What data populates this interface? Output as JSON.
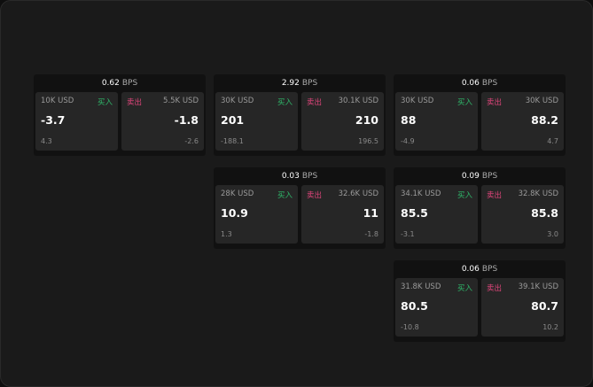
{
  "colors": {
    "buy": "#2fb86a",
    "sell": "#e0457b"
  },
  "labels": {
    "buy": "买入",
    "sell": "卖出",
    "unit": "BPS"
  },
  "cards": [
    {
      "spread": "0.62",
      "bid": {
        "size": "10K USD",
        "price": "-3.7",
        "change": "4.3"
      },
      "ask": {
        "size": "5.5K USD",
        "price": "-1.8",
        "change": "-2.6"
      }
    },
    {
      "spread": "2.92",
      "bid": {
        "size": "30K USD",
        "price": "201",
        "change": "-188.1"
      },
      "ask": {
        "size": "30.1K USD",
        "price": "210",
        "change": "196.5"
      }
    },
    {
      "spread": "0.06",
      "bid": {
        "size": "30K USD",
        "price": "88",
        "change": "-4.9"
      },
      "ask": {
        "size": "30K USD",
        "price": "88.2",
        "change": "4.7"
      }
    },
    {
      "spread": "0.03",
      "bid": {
        "size": "28K USD",
        "price": "10.9",
        "change": "1.3"
      },
      "ask": {
        "size": "32.6K USD",
        "price": "11",
        "change": "-1.8"
      }
    },
    {
      "spread": "0.09",
      "bid": {
        "size": "34.1K USD",
        "price": "85.5",
        "change": "-3.1"
      },
      "ask": {
        "size": "32.8K USD",
        "price": "85.8",
        "change": "3.0"
      }
    },
    {
      "spread": "0.06",
      "bid": {
        "size": "31.8K USD",
        "price": "80.5",
        "change": "-10.8"
      },
      "ask": {
        "size": "39.1K USD",
        "price": "80.7",
        "change": "10.2"
      }
    }
  ]
}
